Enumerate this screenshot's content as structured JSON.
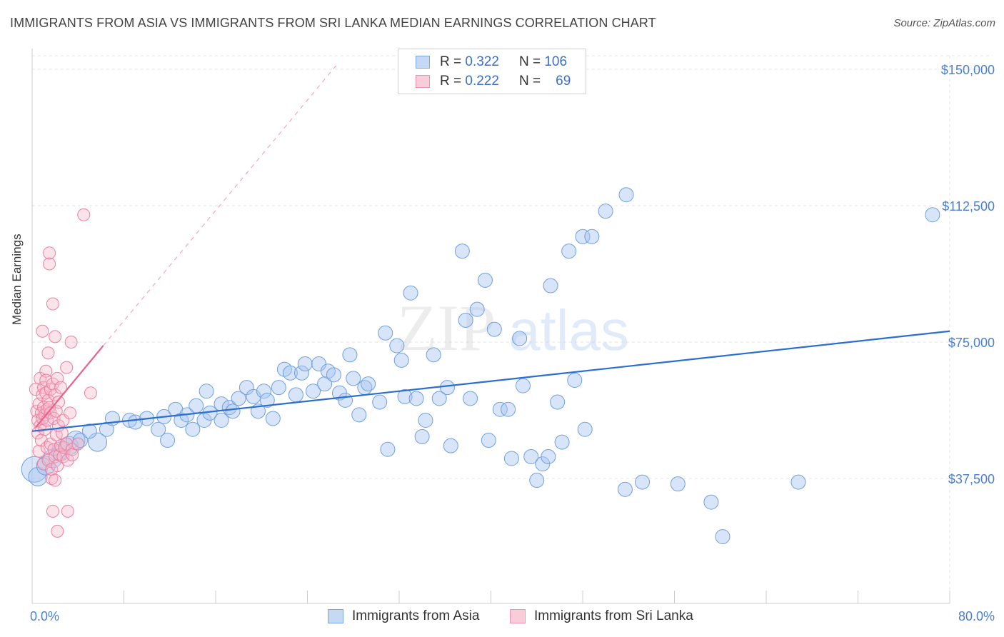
{
  "header": {
    "title": "IMMIGRANTS FROM ASIA VS IMMIGRANTS FROM SRI LANKA MEDIAN EARNINGS CORRELATION CHART",
    "source": "Source: ZipAtlas.com"
  },
  "watermark": {
    "zip": "ZIP",
    "atlas": "atlas"
  },
  "legend": {
    "rows": [
      {
        "r_label": "R =",
        "r_value": "0.322",
        "n_label": "N =",
        "n_value": "106",
        "color": "#a9c6f0"
      },
      {
        "r_label": "R =",
        "r_value": "0.222",
        "n_label": "N =",
        "n_value": "69",
        "color": "#f6b8cb"
      }
    ]
  },
  "colors": {
    "asia_fill": "#a9c6f0",
    "asia_stroke": "#6f9fe0",
    "asia_line": "#2a6fd0",
    "lanka_fill": "#f6b8cb",
    "lanka_stroke": "#ec7fa1",
    "lanka_line": "#e8638c",
    "tick_text": "#4a7fd1",
    "grid": "#e3e3e3"
  },
  "chart_data": {
    "type": "scatter",
    "title": "IMMIGRANTS FROM ASIA VS IMMIGRANTS FROM SRI LANKA MEDIAN EARNINGS CORRELATION CHART",
    "xlabel": "",
    "ylabel": "Median Earnings",
    "xlim": [
      0,
      80
    ],
    "ylim": [
      12000,
      155000
    ],
    "x_tick_labels": [
      "0.0%",
      "80.0%"
    ],
    "y_ticks": [
      37500,
      75000,
      112500,
      150000
    ],
    "y_tick_labels": [
      "$37,500",
      "$75,000",
      "$112,500",
      "$150,000"
    ],
    "grid": true,
    "legend_position": "top-center",
    "series": [
      {
        "name": "Immigrants from Asia",
        "trend": {
          "x": [
            0,
            80
          ],
          "y": [
            50500,
            78000
          ]
        },
        "points": [
          {
            "x": 0.2,
            "y": 40000,
            "s": 3
          },
          {
            "x": 0.5,
            "y": 38000,
            "s": 2
          },
          {
            "x": 1.2,
            "y": 41000,
            "s": 2
          },
          {
            "x": 1.8,
            "y": 43000,
            "s": 2
          },
          {
            "x": 2.5,
            "y": 45000,
            "s": 2
          },
          {
            "x": 3.2,
            "y": 46500,
            "s": 2
          },
          {
            "x": 3.8,
            "y": 48000,
            "s": 2
          },
          {
            "x": 4.2,
            "y": 48000,
            "s": 1
          },
          {
            "x": 5.7,
            "y": 47500,
            "s": 2
          },
          {
            "x": 5.0,
            "y": 50500,
            "s": 1
          },
          {
            "x": 6.5,
            "y": 51000,
            "s": 1
          },
          {
            "x": 7.0,
            "y": 54000,
            "s": 1
          },
          {
            "x": 8.5,
            "y": 53500,
            "s": 1
          },
          {
            "x": 9.0,
            "y": 53000,
            "s": 1
          },
          {
            "x": 10.0,
            "y": 54000,
            "s": 1
          },
          {
            "x": 11.0,
            "y": 51000,
            "s": 1
          },
          {
            "x": 11.5,
            "y": 54500,
            "s": 1
          },
          {
            "x": 11.8,
            "y": 48000,
            "s": 1
          },
          {
            "x": 12.5,
            "y": 56500,
            "s": 1
          },
          {
            "x": 13.0,
            "y": 53500,
            "s": 1
          },
          {
            "x": 13.5,
            "y": 55000,
            "s": 1
          },
          {
            "x": 14.0,
            "y": 51000,
            "s": 1
          },
          {
            "x": 14.3,
            "y": 57500,
            "s": 1
          },
          {
            "x": 15.0,
            "y": 53500,
            "s": 1
          },
          {
            "x": 15.5,
            "y": 55500,
            "s": 1
          },
          {
            "x": 15.2,
            "y": 61500,
            "s": 1
          },
          {
            "x": 16.5,
            "y": 53500,
            "s": 1
          },
          {
            "x": 16.5,
            "y": 58000,
            "s": 1
          },
          {
            "x": 17.2,
            "y": 57000,
            "s": 1
          },
          {
            "x": 17.5,
            "y": 56000,
            "s": 1
          },
          {
            "x": 18.0,
            "y": 59500,
            "s": 1
          },
          {
            "x": 18.7,
            "y": 62500,
            "s": 1
          },
          {
            "x": 19.3,
            "y": 60000,
            "s": 1
          },
          {
            "x": 19.7,
            "y": 56000,
            "s": 1
          },
          {
            "x": 20.2,
            "y": 61500,
            "s": 1
          },
          {
            "x": 20.5,
            "y": 59000,
            "s": 1
          },
          {
            "x": 21.0,
            "y": 54000,
            "s": 1
          },
          {
            "x": 21.5,
            "y": 62500,
            "s": 1
          },
          {
            "x": 22.0,
            "y": 67500,
            "s": 1
          },
          {
            "x": 22.5,
            "y": 66500,
            "s": 1
          },
          {
            "x": 23.0,
            "y": 60500,
            "s": 1
          },
          {
            "x": 23.5,
            "y": 66500,
            "s": 1
          },
          {
            "x": 23.8,
            "y": 69000,
            "s": 1
          },
          {
            "x": 24.5,
            "y": 61500,
            "s": 1
          },
          {
            "x": 25.0,
            "y": 69000,
            "s": 1
          },
          {
            "x": 25.5,
            "y": 63500,
            "s": 1
          },
          {
            "x": 25.8,
            "y": 67000,
            "s": 1
          },
          {
            "x": 26.3,
            "y": 66000,
            "s": 1
          },
          {
            "x": 26.8,
            "y": 61000,
            "s": 1
          },
          {
            "x": 27.3,
            "y": 59000,
            "s": 1
          },
          {
            "x": 27.7,
            "y": 71500,
            "s": 1
          },
          {
            "x": 28.0,
            "y": 65000,
            "s": 1
          },
          {
            "x": 28.5,
            "y": 55000,
            "s": 1
          },
          {
            "x": 29.0,
            "y": 62500,
            "s": 1
          },
          {
            "x": 29.3,
            "y": 63500,
            "s": 1
          },
          {
            "x": 30.3,
            "y": 58500,
            "s": 1
          },
          {
            "x": 30.8,
            "y": 77500,
            "s": 1
          },
          {
            "x": 31.0,
            "y": 45500,
            "s": 1
          },
          {
            "x": 31.8,
            "y": 74000,
            "s": 1
          },
          {
            "x": 32.2,
            "y": 70000,
            "s": 1
          },
          {
            "x": 32.5,
            "y": 60000,
            "s": 1
          },
          {
            "x": 33.0,
            "y": 88500,
            "s": 1
          },
          {
            "x": 33.5,
            "y": 59500,
            "s": 1
          },
          {
            "x": 34.0,
            "y": 49000,
            "s": 1
          },
          {
            "x": 34.3,
            "y": 53500,
            "s": 1
          },
          {
            "x": 35.0,
            "y": 71500,
            "s": 1
          },
          {
            "x": 35.5,
            "y": 59500,
            "s": 1
          },
          {
            "x": 36.2,
            "y": 62500,
            "s": 1
          },
          {
            "x": 36.5,
            "y": 46500,
            "s": 1
          },
          {
            "x": 37.5,
            "y": 100000,
            "s": 1
          },
          {
            "x": 37.8,
            "y": 81000,
            "s": 1
          },
          {
            "x": 38.2,
            "y": 59500,
            "s": 1
          },
          {
            "x": 38.8,
            "y": 84000,
            "s": 1
          },
          {
            "x": 39.5,
            "y": 92000,
            "s": 1
          },
          {
            "x": 39.8,
            "y": 48000,
            "s": 1
          },
          {
            "x": 40.3,
            "y": 78500,
            "s": 1
          },
          {
            "x": 40.8,
            "y": 56500,
            "s": 1
          },
          {
            "x": 41.5,
            "y": 56500,
            "s": 1
          },
          {
            "x": 41.8,
            "y": 43000,
            "s": 1
          },
          {
            "x": 42.5,
            "y": 76000,
            "s": 1
          },
          {
            "x": 42.8,
            "y": 63000,
            "s": 1
          },
          {
            "x": 43.5,
            "y": 43500,
            "s": 1
          },
          {
            "x": 44.0,
            "y": 37000,
            "s": 1
          },
          {
            "x": 44.5,
            "y": 41500,
            "s": 1
          },
          {
            "x": 45.0,
            "y": 43500,
            "s": 1
          },
          {
            "x": 45.2,
            "y": 90500,
            "s": 1
          },
          {
            "x": 45.8,
            "y": 58500,
            "s": 1
          },
          {
            "x": 46.2,
            "y": 47500,
            "s": 1
          },
          {
            "x": 46.8,
            "y": 100000,
            "s": 1
          },
          {
            "x": 47.3,
            "y": 64500,
            "s": 1
          },
          {
            "x": 48.0,
            "y": 104000,
            "s": 1
          },
          {
            "x": 48.8,
            "y": 104000,
            "s": 1
          },
          {
            "x": 48.2,
            "y": 51000,
            "s": 1
          },
          {
            "x": 50.0,
            "y": 111000,
            "s": 1
          },
          {
            "x": 51.8,
            "y": 115500,
            "s": 1
          },
          {
            "x": 51.7,
            "y": 34500,
            "s": 1
          },
          {
            "x": 53.2,
            "y": 36500,
            "s": 1
          },
          {
            "x": 56.3,
            "y": 36000,
            "s": 1
          },
          {
            "x": 59.2,
            "y": 31000,
            "s": 1
          },
          {
            "x": 60.2,
            "y": 21500,
            "s": 1
          },
          {
            "x": 66.8,
            "y": 36500,
            "s": 1
          },
          {
            "x": 78.5,
            "y": 110000,
            "s": 1
          }
        ]
      },
      {
        "name": "Immigrants from Sri Lanka",
        "trend": {
          "x": [
            0.3,
            6.2
          ],
          "y": [
            51500,
            74000
          ]
        },
        "trend_extension": {
          "x": [
            6.2,
            26.5
          ],
          "y": [
            74000,
            151000
          ]
        },
        "points": [
          {
            "x": 0.3,
            "y": 62000
          },
          {
            "x": 0.4,
            "y": 56000
          },
          {
            "x": 0.5,
            "y": 53500
          },
          {
            "x": 0.5,
            "y": 50000
          },
          {
            "x": 0.6,
            "y": 58000
          },
          {
            "x": 0.6,
            "y": 45000
          },
          {
            "x": 0.7,
            "y": 65000
          },
          {
            "x": 0.7,
            "y": 52000
          },
          {
            "x": 0.8,
            "y": 55500
          },
          {
            "x": 0.8,
            "y": 48000
          },
          {
            "x": 0.9,
            "y": 60500
          },
          {
            "x": 0.9,
            "y": 54000
          },
          {
            "x": 1.0,
            "y": 57000
          },
          {
            "x": 1.0,
            "y": 62500
          },
          {
            "x": 1.0,
            "y": 41500
          },
          {
            "x": 1.1,
            "y": 55000
          },
          {
            "x": 1.1,
            "y": 51000
          },
          {
            "x": 1.2,
            "y": 67000
          },
          {
            "x": 1.2,
            "y": 64500
          },
          {
            "x": 1.2,
            "y": 61000
          },
          {
            "x": 1.3,
            "y": 56500
          },
          {
            "x": 1.3,
            "y": 53500
          },
          {
            "x": 1.3,
            "y": 46000
          },
          {
            "x": 1.4,
            "y": 72000
          },
          {
            "x": 1.4,
            "y": 59000
          },
          {
            "x": 1.4,
            "y": 42500
          },
          {
            "x": 1.5,
            "y": 96500
          },
          {
            "x": 1.5,
            "y": 99500
          },
          {
            "x": 1.5,
            "y": 57000
          },
          {
            "x": 1.6,
            "y": 62000
          },
          {
            "x": 1.6,
            "y": 55500
          },
          {
            "x": 1.6,
            "y": 47000
          },
          {
            "x": 1.7,
            "y": 37500
          },
          {
            "x": 1.7,
            "y": 40000
          },
          {
            "x": 1.8,
            "y": 28500
          },
          {
            "x": 1.8,
            "y": 85500
          },
          {
            "x": 1.8,
            "y": 63500
          },
          {
            "x": 1.9,
            "y": 54000
          },
          {
            "x": 1.9,
            "y": 45500
          },
          {
            "x": 2.0,
            "y": 76500
          },
          {
            "x": 2.0,
            "y": 60500
          },
          {
            "x": 2.0,
            "y": 43500
          },
          {
            "x": 2.0,
            "y": 37000
          },
          {
            "x": 2.1,
            "y": 56000
          },
          {
            "x": 2.1,
            "y": 49500
          },
          {
            "x": 2.2,
            "y": 65000
          },
          {
            "x": 2.2,
            "y": 41000
          },
          {
            "x": 2.2,
            "y": 23000
          },
          {
            "x": 2.3,
            "y": 58500
          },
          {
            "x": 2.3,
            "y": 52000
          },
          {
            "x": 2.4,
            "y": 44000
          },
          {
            "x": 2.5,
            "y": 62500
          },
          {
            "x": 2.5,
            "y": 46500
          },
          {
            "x": 2.6,
            "y": 50000
          },
          {
            "x": 2.7,
            "y": 43500
          },
          {
            "x": 2.7,
            "y": 53500
          },
          {
            "x": 2.8,
            "y": 46000
          },
          {
            "x": 3.0,
            "y": 47000
          },
          {
            "x": 3.0,
            "y": 68000
          },
          {
            "x": 3.1,
            "y": 28500
          },
          {
            "x": 3.1,
            "y": 42500
          },
          {
            "x": 3.3,
            "y": 55500
          },
          {
            "x": 3.4,
            "y": 75000
          },
          {
            "x": 3.5,
            "y": 45500
          },
          {
            "x": 3.5,
            "y": 44000
          },
          {
            "x": 4.0,
            "y": 47000
          },
          {
            "x": 4.5,
            "y": 110000
          },
          {
            "x": 5.1,
            "y": 61000
          },
          {
            "x": 0.9,
            "y": 78000
          }
        ]
      }
    ]
  },
  "bottom_legend": {
    "items": [
      {
        "label": "Immigrants from Asia",
        "color": "#a9c6f0"
      },
      {
        "label": "Immigrants from Sri Lanka",
        "color": "#f6b8cb"
      }
    ]
  }
}
